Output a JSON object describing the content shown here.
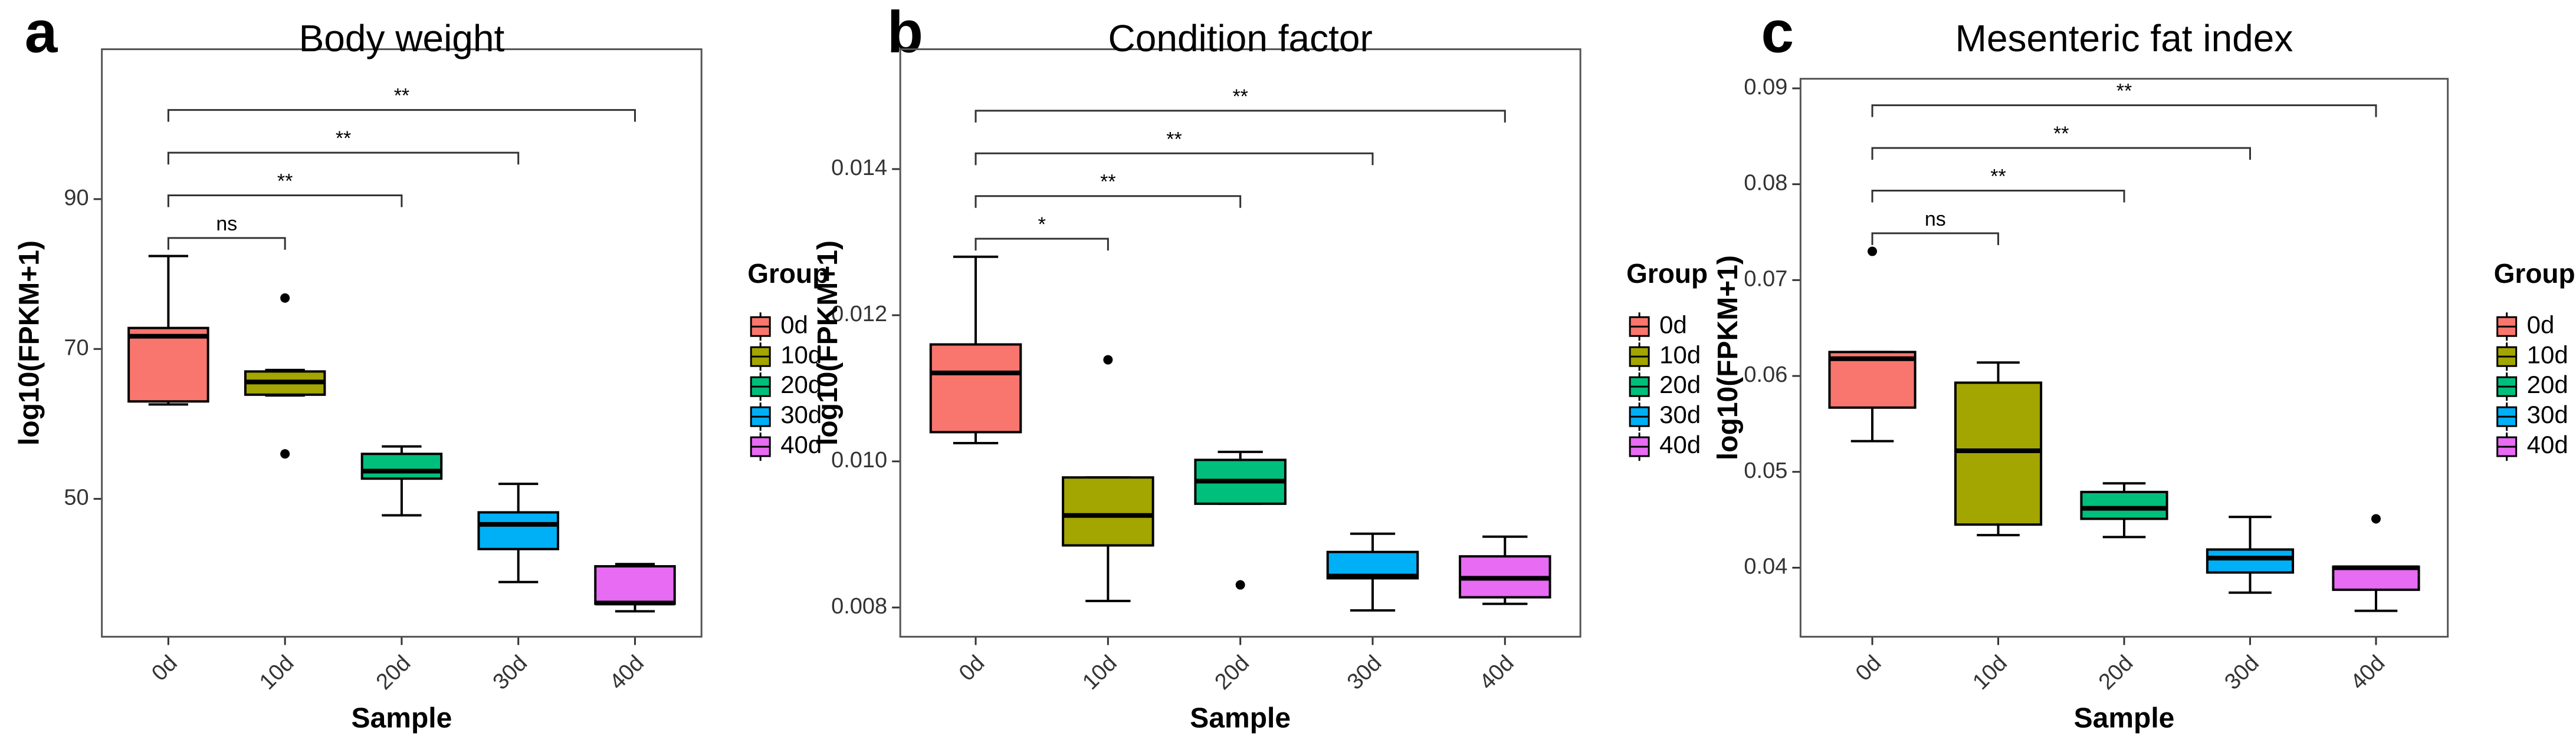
{
  "chart_data": [
    {
      "type": "box",
      "panel_label": "a",
      "title": "Body weight",
      "x_label": "Sample",
      "y_label": "log10(FPKM+1)",
      "legend_title": "Group",
      "categories": [
        "0d",
        "10d",
        "20d",
        "30d",
        "40d"
      ],
      "colors": [
        "#F8766D",
        "#A3A500",
        "#00BF7D",
        "#00B0F6",
        "#E76BF3"
      ],
      "boxes": [
        {
          "whisker_low": 62.6,
          "q1": 63.0,
          "median": 71.7,
          "q3": 72.8,
          "whisker_high": 82.4,
          "outliers": []
        },
        {
          "whisker_low": 63.8,
          "q1": 63.9,
          "median": 65.6,
          "q3": 67.0,
          "whisker_high": 67.2,
          "outliers": [
            56.0,
            76.8
          ]
        },
        {
          "whisker_low": 47.8,
          "q1": 52.7,
          "median": 53.7,
          "q3": 56.0,
          "whisker_high": 57.0,
          "outliers": []
        },
        {
          "whisker_low": 38.9,
          "q1": 43.3,
          "median": 46.6,
          "q3": 48.2,
          "whisker_high": 52.0,
          "outliers": []
        },
        {
          "whisker_low": 35.0,
          "q1": 36.0,
          "median": 36.1,
          "q3": 41.0,
          "whisker_high": 41.3,
          "outliers": []
        }
      ],
      "ylim": [
        31.6,
        110
      ],
      "yticks": [
        50,
        70,
        90
      ],
      "comparisons": [
        {
          "label": "ns",
          "groups": [
            "0d",
            "10d"
          ]
        },
        {
          "label": "**",
          "groups": [
            "0d",
            "20d"
          ]
        },
        {
          "label": "**",
          "groups": [
            "0d",
            "30d"
          ]
        },
        {
          "label": "**",
          "groups": [
            "0d",
            "40d"
          ]
        }
      ]
    },
    {
      "type": "box",
      "panel_label": "b",
      "title": "Condition factor",
      "x_label": "Sample",
      "y_label": "log10(FPKM+1)",
      "legend_title": "Group",
      "categories": [
        "0d",
        "10d",
        "20d",
        "30d",
        "40d"
      ],
      "colors": [
        "#F8766D",
        "#A3A500",
        "#00BF7D",
        "#00B0F6",
        "#E76BF3"
      ],
      "boxes": [
        {
          "whisker_low": 0.01025,
          "q1": 0.0104,
          "median": 0.01121,
          "q3": 0.0116,
          "whisker_high": 0.0128,
          "outliers": []
        },
        {
          "whisker_low": 0.00809,
          "q1": 0.00885,
          "median": 0.00926,
          "q3": 0.00978,
          "whisker_high": 0.00978,
          "outliers": [
            0.01139
          ]
        },
        {
          "whisker_low": 0.00942,
          "q1": 0.00942,
          "median": 0.00973,
          "q3": 0.01002,
          "whisker_high": 0.01013,
          "outliers": [
            0.00831
          ]
        },
        {
          "whisker_low": 0.00796,
          "q1": 0.0084,
          "median": 0.00843,
          "q3": 0.00876,
          "whisker_high": 0.00901,
          "outliers": []
        },
        {
          "whisker_low": 0.00805,
          "q1": 0.00814,
          "median": 0.0084,
          "q3": 0.0087,
          "whisker_high": 0.00897,
          "outliers": []
        }
      ],
      "ylim": [
        0.0076,
        0.01564
      ],
      "yticks": [
        0.008,
        {
          "value": 0.01,
          "label": "0.010"
        },
        0.012,
        0.014
      ],
      "comparisons": [
        {
          "label": "*",
          "groups": [
            "0d",
            "10d"
          ]
        },
        {
          "label": "**",
          "groups": [
            "0d",
            "20d"
          ]
        },
        {
          "label": "**",
          "groups": [
            "0d",
            "30d"
          ]
        },
        {
          "label": "**",
          "groups": [
            "0d",
            "40d"
          ]
        }
      ]
    },
    {
      "type": "box",
      "panel_label": "c",
      "title": "Mesenteric fat index",
      "x_label": "Sample",
      "y_label": "log10(FPKM+1)",
      "legend_title": "Group",
      "categories": [
        "0d",
        "10d",
        "20d",
        "30d",
        "40d"
      ],
      "colors": [
        "#F8766D",
        "#A3A500",
        "#00BF7D",
        "#00B0F6",
        "#E76BF3"
      ],
      "boxes": [
        {
          "whisker_low": 0.0532,
          "q1": 0.0567,
          "median": 0.0618,
          "q3": 0.0625,
          "whisker_high": 0.0625,
          "outliers": [
            0.073
          ]
        },
        {
          "whisker_low": 0.0434,
          "q1": 0.0445,
          "median": 0.0522,
          "q3": 0.0593,
          "whisker_high": 0.0614,
          "outliers": []
        },
        {
          "whisker_low": 0.0432,
          "q1": 0.0451,
          "median": 0.0462,
          "q3": 0.0479,
          "whisker_high": 0.0488,
          "outliers": []
        },
        {
          "whisker_low": 0.0374,
          "q1": 0.0395,
          "median": 0.041,
          "q3": 0.0419,
          "whisker_high": 0.0453,
          "outliers": []
        },
        {
          "whisker_low": 0.0355,
          "q1": 0.0377,
          "median": 0.04,
          "q3": 0.0401,
          "whisker_high": 0.0401,
          "outliers": [
            0.0451
          ]
        }
      ],
      "ylim": [
        0.0328,
        0.091
      ],
      "yticks": [
        0.04,
        0.05,
        0.06,
        0.07,
        0.08,
        0.09
      ],
      "comparisons": [
        {
          "label": "ns",
          "groups": [
            "0d",
            "10d"
          ]
        },
        {
          "label": "**",
          "groups": [
            "0d",
            "20d"
          ]
        },
        {
          "label": "**",
          "groups": [
            "0d",
            "30d"
          ]
        },
        {
          "label": "**",
          "groups": [
            "0d",
            "40d"
          ]
        }
      ]
    }
  ]
}
